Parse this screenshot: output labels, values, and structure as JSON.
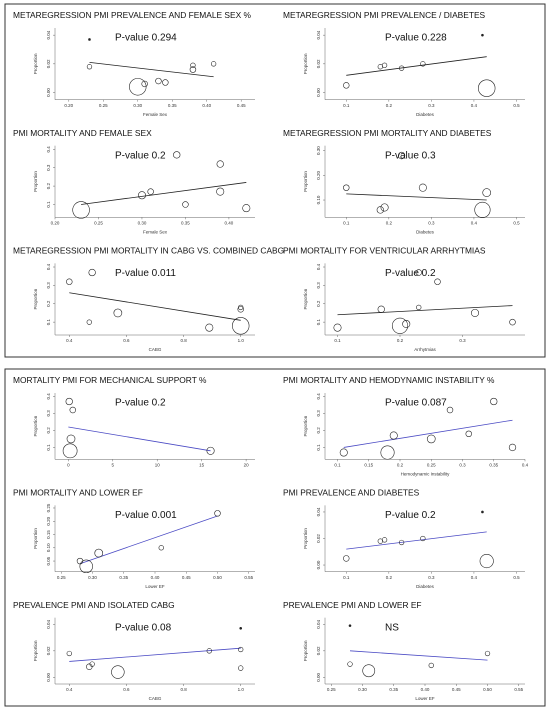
{
  "chart_data": [
    {
      "type": "scatter",
      "title": "METAREGRESSION PMI PREVALENCE AND FEMALE SEX %",
      "annotation": "P-value 0.294",
      "xlabel": "Female Sex",
      "ylabel": "Proportion",
      "xlim": [
        0.18,
        0.47
      ],
      "xticks": [
        {
          "value": 0.2,
          "label": "0.20"
        },
        0.25,
        {
          "value": 0.3,
          "label": "0.30"
        },
        0.35,
        {
          "value": 0.4,
          "label": "0.40"
        },
        0.45
      ],
      "ylim": [
        -0.005,
        0.045
      ],
      "yticks": [
        {
          "value": 0,
          "label": "0.00"
        },
        0.02,
        0.04
      ],
      "x": [
        0.23,
        0.23,
        0.3,
        0.31,
        0.33,
        0.34,
        0.38,
        0.38,
        0.41
      ],
      "values": [
        0.037,
        0.018,
        0.004,
        0.006,
        0.008,
        0.007,
        0.016,
        0.019,
        0.02
      ],
      "sizes": [
        0,
        1,
        30,
        2,
        2,
        2,
        2,
        1,
        1
      ],
      "trend": {
        "x": [
          0.23,
          0.41
        ],
        "values": [
          0.021,
          0.011
        ]
      },
      "color": "#222222",
      "line_color": "#222222"
    },
    {
      "type": "scatter",
      "title": "METAREGRESSION PMI PREVALENCE / DIABETES",
      "annotation": "P-value 0.228",
      "xlabel": "Diabetes",
      "ylabel": "Proportion",
      "xlim": [
        0.05,
        0.52
      ],
      "xticks": [
        0.1,
        0.2,
        0.3,
        0.4,
        0.5
      ],
      "ylim": [
        -0.005,
        0.045
      ],
      "yticks": [
        {
          "value": 0,
          "label": "0.00"
        },
        0.02,
        0.04
      ],
      "x": [
        0.1,
        0.18,
        0.19,
        0.23,
        0.28,
        0.42,
        0.43
      ],
      "values": [
        0.005,
        0.018,
        0.019,
        0.017,
        0.02,
        0.04,
        0.003
      ],
      "sizes": [
        2,
        1,
        1,
        1,
        1,
        0,
        30
      ],
      "trend": {
        "x": [
          0.1,
          0.43
        ],
        "values": [
          0.012,
          0.025
        ]
      },
      "color": "#222222",
      "line_color": "#222222"
    },
    {
      "type": "scatter",
      "title": "PMI MORTALITY AND FEMALE SEX",
      "annotation": "P-value 0.2",
      "xlabel": "Female Sex",
      "ylabel": "Proportion",
      "xlim": [
        0.2,
        0.43
      ],
      "xticks": [
        {
          "value": 0.2,
          "label": "0.20"
        },
        0.25,
        {
          "value": 0.3,
          "label": "0.30"
        },
        0.35,
        {
          "value": 0.4,
          "label": "0.40"
        }
      ],
      "ylim": [
        0.03,
        0.42
      ],
      "yticks": [
        0.1,
        0.2,
        0.3,
        0.4
      ],
      "x": [
        0.23,
        0.3,
        0.31,
        0.34,
        0.35,
        0.39,
        0.39,
        0.42
      ],
      "values": [
        0.07,
        0.15,
        0.17,
        0.37,
        0.1,
        0.32,
        0.17,
        0.08
      ],
      "sizes": [
        30,
        4,
        2,
        3,
        2,
        3,
        4,
        4
      ],
      "trend": {
        "x": [
          0.23,
          0.42
        ],
        "values": [
          0.1,
          0.22
        ]
      },
      "color": "#222222",
      "line_color": "#222222"
    },
    {
      "type": "scatter",
      "title": "METAREGRESSION PMI MORTALITY AND DIABETES",
      "annotation": "P-value 0.3",
      "xlabel": "Diabetes",
      "ylabel": "Proportion",
      "xlim": [
        0.05,
        0.52
      ],
      "xticks": [
        0.1,
        0.2,
        0.3,
        0.4,
        0.5
      ],
      "ylim": [
        0.03,
        0.32
      ],
      "yticks": [
        {
          "value": 0.1,
          "label": "0.10"
        },
        {
          "value": 0.2,
          "label": "0.20"
        },
        {
          "value": 0.3,
          "label": "0.30"
        }
      ],
      "x": [
        0.1,
        0.18,
        0.19,
        0.23,
        0.28,
        0.42,
        0.43
      ],
      "values": [
        0.15,
        0.06,
        0.07,
        0.28,
        0.15,
        0.06,
        0.13
      ],
      "sizes": [
        2,
        3,
        4,
        3,
        4,
        25,
        5
      ],
      "trend": {
        "x": [
          0.1,
          0.43
        ],
        "values": [
          0.125,
          0.1
        ]
      },
      "color": "#222222",
      "line_color": "#222222"
    },
    {
      "type": "scatter",
      "title": "METAREGRESSION PMI MORTALITY IN CABG VS. COMBINED CABG",
      "annotation": "P-value 0.011",
      "xlabel": "CABG",
      "ylabel": "Proportion",
      "xlim": [
        0.35,
        1.05
      ],
      "xticks": [
        0.4,
        0.6,
        0.8,
        {
          "value": 1,
          "label": "1.0"
        }
      ],
      "ylim": [
        0.03,
        0.42
      ],
      "yticks": [
        0.1,
        0.2,
        0.3,
        0.4
      ],
      "x": [
        0.4,
        0.47,
        0.48,
        0.57,
        0.89,
        1.0,
        1.0,
        1.0
      ],
      "values": [
        0.32,
        0.1,
        0.37,
        0.15,
        0.07,
        0.17,
        0.18,
        0.08
      ],
      "sizes": [
        2,
        1,
        3,
        5,
        4,
        2,
        1,
        30
      ],
      "trend": {
        "x": [
          0.4,
          1.0
        ],
        "values": [
          0.26,
          0.11
        ]
      },
      "color": "#222222",
      "line_color": "#222222"
    },
    {
      "type": "scatter",
      "title": "PMI MORTALITY FOR VENTRICULAR ARRHYTMIAS",
      "annotation": "P-value 0.2",
      "xlabel": "Arrhytmias",
      "ylabel": "Proportion",
      "xlim": [
        0.08,
        0.4
      ],
      "xticks": [
        0.1,
        0.2,
        0.3
      ],
      "ylim": [
        0.03,
        0.42
      ],
      "yticks": [
        0.1,
        0.2,
        0.3,
        0.4
      ],
      "x": [
        0.1,
        0.17,
        0.2,
        0.21,
        0.23,
        0.23,
        0.26,
        0.32,
        0.38
      ],
      "values": [
        0.07,
        0.17,
        0.08,
        0.09,
        0.18,
        0.37,
        0.32,
        0.15,
        0.1
      ],
      "sizes": [
        4,
        3,
        25,
        4,
        1,
        2,
        2,
        4,
        2
      ],
      "trend": {
        "x": [
          0.1,
          0.38
        ],
        "values": [
          0.14,
          0.19
        ]
      },
      "color": "#222222",
      "line_color": "#222222"
    },
    {
      "type": "scatter",
      "title": "MORTALITY PMI FOR MECHANICAL SUPPORT %",
      "annotation": "P-value 0.2",
      "ylabel": "Proportion",
      "xlim": [
        -1.5,
        21
      ],
      "xticks": [
        0,
        5,
        10,
        15,
        20
      ],
      "ylim": [
        0.03,
        0.42
      ],
      "yticks": [
        0.1,
        0.2,
        0.3,
        0.4
      ],
      "x": [
        0.1,
        0.5,
        0.3,
        0.2,
        16
      ],
      "values": [
        0.37,
        0.32,
        0.15,
        0.08,
        0.08
      ],
      "sizes": [
        3,
        2,
        5,
        20,
        4
      ],
      "trend": {
        "x": [
          0,
          16
        ],
        "values": [
          0.22,
          0.08
        ]
      },
      "color": "#222222",
      "line_color": "#4a4ac4"
    },
    {
      "type": "scatter",
      "title": "PMI MORTALITY AND HEMODYNAMIC INSTABILITY %",
      "annotation": "P-value 0.087",
      "xlabel": "Hemodynamic Instability",
      "ylabel": "Proportion",
      "xlim": [
        0.08,
        0.4
      ],
      "xticks": [
        0.1,
        0.15,
        0.2,
        0.25,
        0.3,
        0.35,
        0.4
      ],
      "ylim": [
        0.03,
        0.42
      ],
      "yticks": [
        0.1,
        0.2,
        0.3,
        0.4
      ],
      "x": [
        0.11,
        0.18,
        0.19,
        0.25,
        0.28,
        0.31,
        0.35,
        0.38
      ],
      "values": [
        0.07,
        0.07,
        0.17,
        0.15,
        0.32,
        0.18,
        0.37,
        0.1
      ],
      "sizes": [
        4,
        18,
        4,
        5,
        2,
        2,
        3,
        3
      ],
      "trend": {
        "x": [
          0.11,
          0.38
        ],
        "values": [
          0.1,
          0.26
        ]
      },
      "color": "#222222",
      "line_color": "#4a4ac4"
    },
    {
      "type": "scatter",
      "title": "PMI MORTALITY AND LOWER EF",
      "annotation": "P-value 0.001",
      "xlabel": "Lower EF",
      "ylabel": "Proportion",
      "xlim": [
        0.24,
        0.56
      ],
      "xticks": [
        0.25,
        {
          "value": 0.3,
          "label": "0.30"
        },
        0.35,
        {
          "value": 0.4,
          "label": "0.40"
        },
        0.45,
        {
          "value": 0.5,
          "label": "0.50"
        },
        0.55
      ],
      "ylim": [
        0.01,
        0.26
      ],
      "yticks": [
        0.05,
        {
          "value": 0.1,
          "label": "0.10"
        },
        0.15,
        {
          "value": 0.2,
          "label": "0.20"
        },
        0.25
      ],
      "x": [
        0.28,
        0.29,
        0.31,
        0.41,
        0.5
      ],
      "values": [
        0.05,
        0.03,
        0.08,
        0.1,
        0.23
      ],
      "sizes": [
        2,
        16,
        5,
        1,
        2
      ],
      "trend": {
        "x": [
          0.28,
          0.5
        ],
        "values": [
          0.04,
          0.22
        ]
      },
      "color": "#222222",
      "line_color": "#4a4ac4"
    },
    {
      "type": "scatter",
      "title": "PMI PREVALENCE AND DIABETES",
      "annotation": "P-value 0.2",
      "xlabel": "Diabetes",
      "ylabel": "Proportion",
      "xlim": [
        0.05,
        0.52
      ],
      "xticks": [
        0.1,
        0.2,
        0.3,
        0.4,
        0.5
      ],
      "ylim": [
        -0.005,
        0.045
      ],
      "yticks": [
        {
          "value": 0,
          "label": "0.00"
        },
        0.02,
        0.04
      ],
      "x": [
        0.1,
        0.18,
        0.19,
        0.23,
        0.28,
        0.42,
        0.43
      ],
      "values": [
        0.005,
        0.018,
        0.019,
        0.017,
        0.02,
        0.04,
        0.003
      ],
      "sizes": [
        2,
        1,
        1,
        1,
        1,
        0,
        18
      ],
      "trend": {
        "x": [
          0.1,
          0.43
        ],
        "values": [
          0.012,
          0.025
        ]
      },
      "color": "#222222",
      "line_color": "#4a4ac4"
    },
    {
      "type": "scatter",
      "title": "PREVALENCE PMI AND ISOLATED CABG",
      "annotation": "P-value 0.08",
      "xlabel": "CABG",
      "ylabel": "Proportion",
      "xlim": [
        0.35,
        1.05
      ],
      "xticks": [
        0.4,
        0.6,
        0.8,
        {
          "value": 1,
          "label": "1.0"
        }
      ],
      "ylim": [
        -0.005,
        0.045
      ],
      "yticks": [
        {
          "value": 0,
          "label": "0.00"
        },
        0.02,
        0.04
      ],
      "x": [
        0.4,
        0.47,
        0.48,
        0.57,
        0.89,
        1.0,
        1.0,
        1.0
      ],
      "values": [
        0.018,
        0.008,
        0.01,
        0.004,
        0.02,
        0.037,
        0.021,
        0.007
      ],
      "sizes": [
        1,
        2,
        1,
        16,
        1,
        0,
        1,
        1
      ],
      "trend": {
        "x": [
          0.4,
          1.0
        ],
        "values": [
          0.012,
          0.022
        ]
      },
      "color": "#222222",
      "line_color": "#4a4ac4"
    },
    {
      "type": "scatter",
      "title": "PREVALENCE PMI AND LOWER EF",
      "annotation": "NS",
      "xlabel": "Lower EF",
      "ylabel": "Proportion",
      "xlim": [
        0.24,
        0.56
      ],
      "xticks": [
        0.25,
        {
          "value": 0.3,
          "label": "0.30"
        },
        0.35,
        {
          "value": 0.4,
          "label": "0.40"
        },
        0.45,
        {
          "value": 0.5,
          "label": "0.50"
        },
        0.55
      ],
      "ylim": [
        -0.005,
        0.045
      ],
      "yticks": [
        {
          "value": 0,
          "label": "0.00"
        },
        0.02,
        0.04
      ],
      "x": [
        0.28,
        0.28,
        0.31,
        0.41,
        0.5
      ],
      "values": [
        0.039,
        0.01,
        0.005,
        0.009,
        0.018
      ],
      "sizes": [
        0,
        1,
        14,
        1,
        1
      ],
      "trend": {
        "x": [
          0.28,
          0.5
        ],
        "values": [
          0.02,
          0.013
        ]
      },
      "color": "#222222",
      "line_color": "#4a4ac4"
    }
  ]
}
